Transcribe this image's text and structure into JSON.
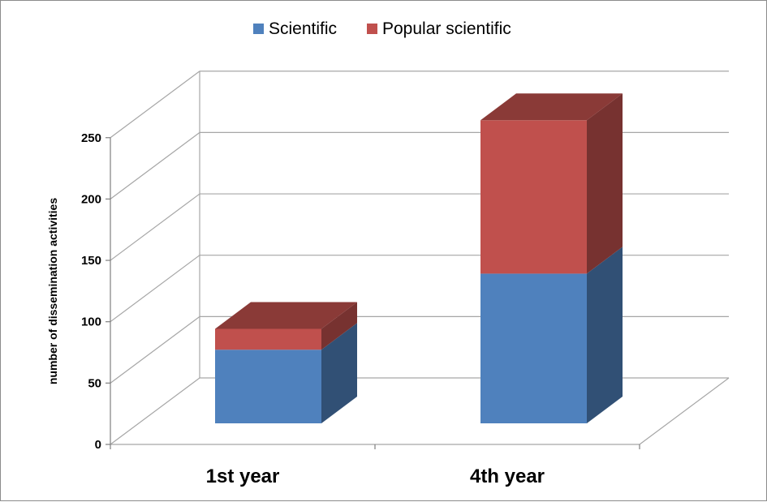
{
  "chart_data": {
    "type": "bar",
    "stacked": true,
    "three_d": true,
    "categories": [
      "1st year",
      "4th year"
    ],
    "series": [
      {
        "name": "Scientific",
        "values": [
          60,
          122
        ],
        "color": "#4f81bd"
      },
      {
        "name": "Popular scientific",
        "values": [
          17,
          125
        ],
        "color": "#c0504d"
      }
    ],
    "ylabel": "number of dissemination activities",
    "xlabel": "",
    "title": "",
    "ylim": [
      0,
      250
    ],
    "yticks": [
      0,
      50,
      100,
      150,
      200,
      250
    ],
    "grid": true,
    "legend_position": "top"
  }
}
